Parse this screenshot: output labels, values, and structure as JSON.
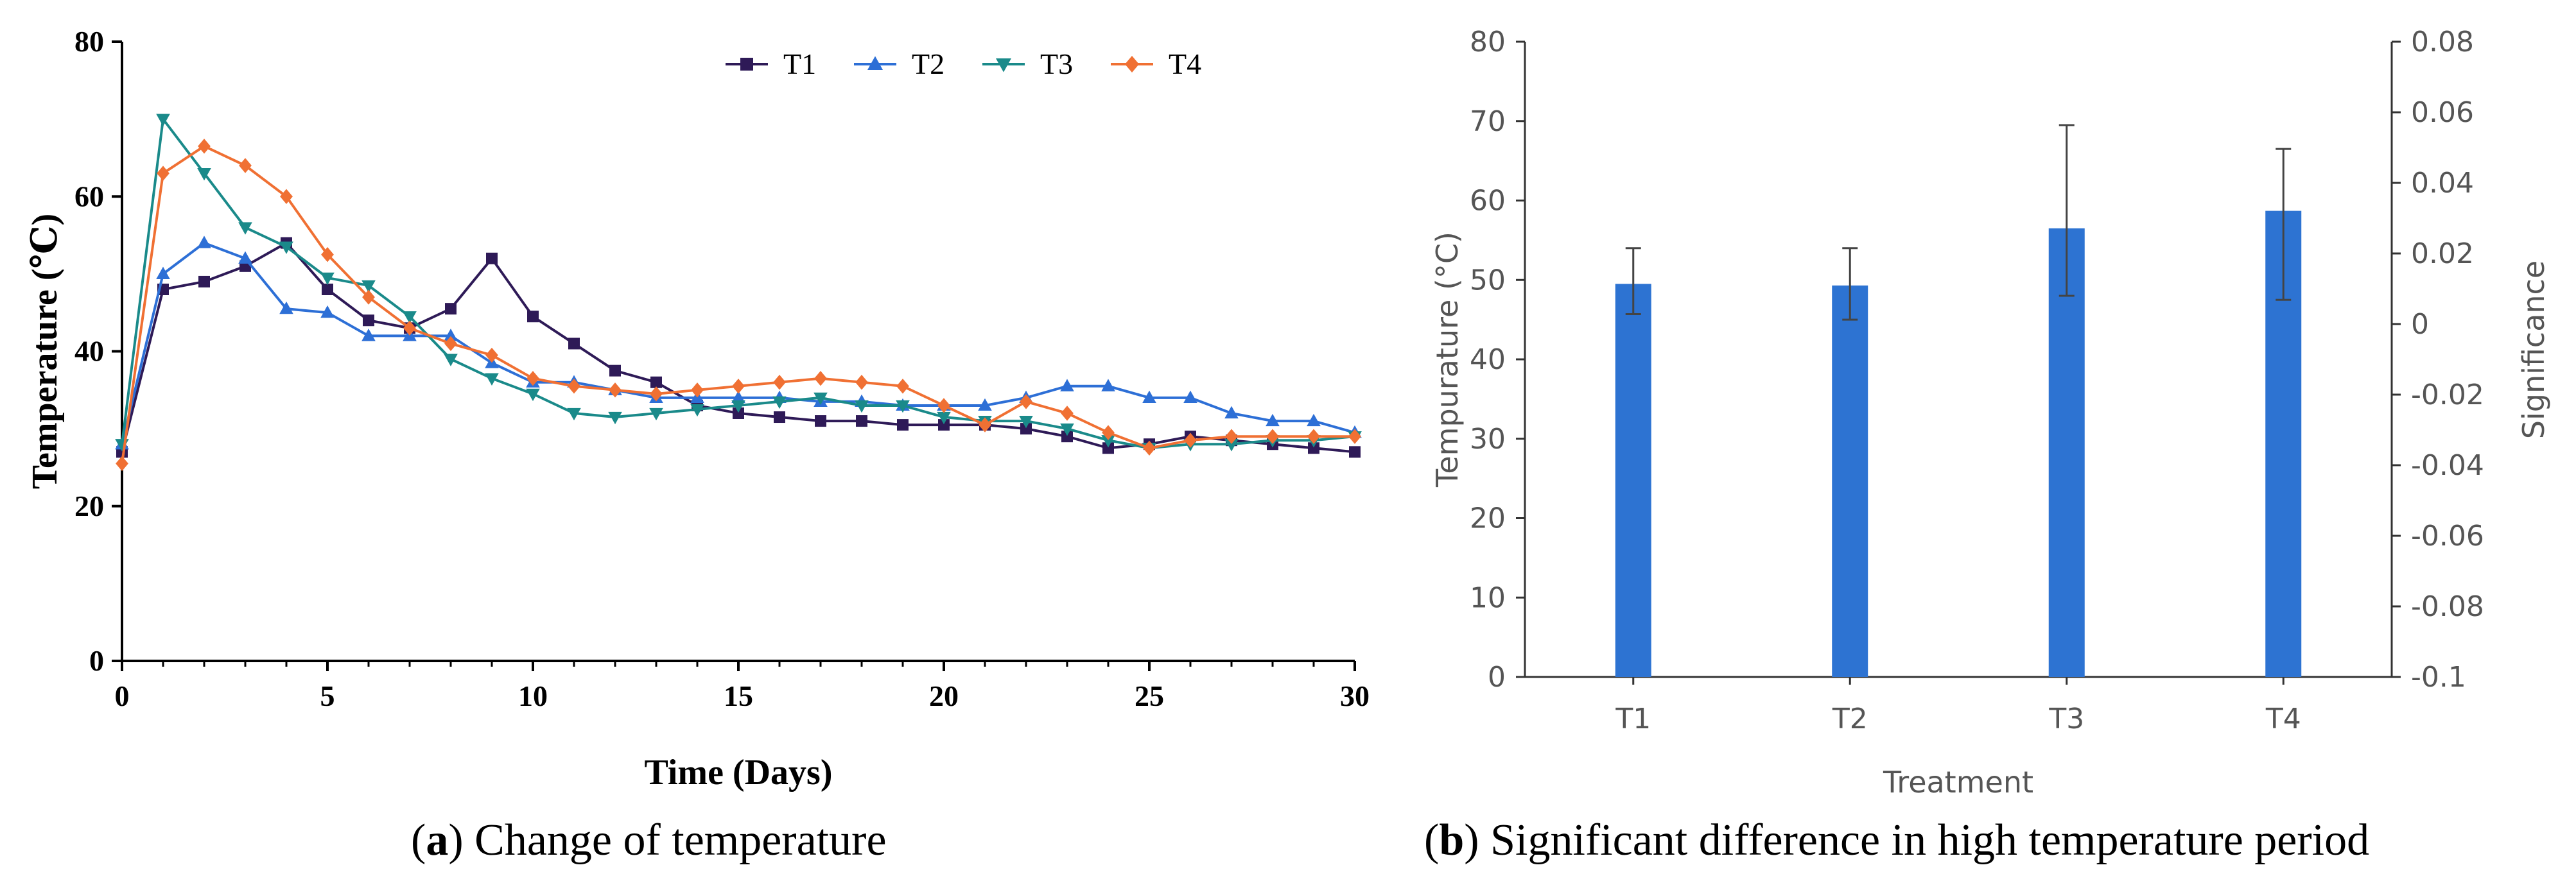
{
  "chart_data": [
    {
      "type": "line",
      "panel": "a",
      "xlabel": "Time (Days)",
      "ylabel": "Temperature (℃)",
      "xlim": [
        0,
        30
      ],
      "ylim": [
        0,
        80
      ],
      "xticks": [
        0,
        5,
        10,
        15,
        20,
        25,
        30
      ],
      "yticks": [
        0,
        20,
        40,
        60,
        80
      ],
      "grid": false,
      "legend_position": "top",
      "x": [
        0,
        1,
        2,
        3,
        4,
        5,
        6,
        7,
        8,
        9,
        10,
        11,
        12,
        13,
        14,
        15,
        16,
        17,
        18,
        19,
        20,
        21,
        22,
        23,
        24,
        25,
        26,
        27,
        28,
        29,
        30
      ],
      "series": [
        {
          "name": "T1",
          "color": "#2e1a57",
          "marker": "square",
          "values": [
            27,
            48,
            49,
            51,
            54,
            48,
            44,
            43,
            45.5,
            52,
            44.5,
            41,
            37.5,
            36,
            33,
            32,
            31.5,
            31,
            31,
            30.5,
            30.5,
            30.5,
            30,
            29,
            27.5,
            28,
            29,
            28.5,
            28,
            27.5,
            27
          ]
        },
        {
          "name": "T2",
          "color": "#2d6fd6",
          "marker": "triangle-up",
          "values": [
            28,
            50,
            54,
            52,
            45.5,
            45,
            42,
            42,
            42,
            38.5,
            36,
            36,
            35,
            34,
            34,
            34,
            34,
            33.5,
            33.5,
            33,
            33,
            33,
            34,
            35.5,
            35.5,
            34,
            34,
            32,
            31,
            31,
            29.5
          ]
        },
        {
          "name": "T3",
          "color": "#1a8a8a",
          "marker": "triangle-down",
          "values": [
            28,
            70,
            63,
            56,
            53.5,
            49.5,
            48.5,
            44.5,
            39,
            36.5,
            34.5,
            32,
            31.5,
            32,
            32.5,
            33,
            33.5,
            34,
            33,
            33,
            31.5,
            31,
            31,
            30,
            28.5,
            27.5,
            28,
            28,
            28.5,
            28.5,
            29
          ]
        },
        {
          "name": "T4",
          "color": "#f07033",
          "marker": "diamond",
          "values": [
            25.5,
            63,
            66.5,
            64,
            60,
            52.5,
            47,
            43,
            41,
            39.5,
            36.5,
            35.5,
            35,
            34.5,
            35,
            35.5,
            36,
            36.5,
            36,
            35.5,
            33,
            30.5,
            33.5,
            32,
            29.5,
            27.5,
            28.5,
            29,
            29,
            29,
            29
          ]
        }
      ]
    },
    {
      "type": "bar",
      "panel": "b",
      "categories": [
        "T1",
        "T2",
        "T3",
        "T4"
      ],
      "values": [
        49.5,
        49.3,
        56.5,
        58.7
      ],
      "error": [
        [
          45.7,
          54
        ],
        [
          45,
          54
        ],
        [
          48,
          69.5
        ],
        [
          47.5,
          66.5
        ]
      ],
      "xlabel": "Treatment",
      "ylabel": "Tempurature (°C)",
      "y2label": "Significance",
      "ylim": [
        0,
        80
      ],
      "yticks": [
        0,
        10,
        20,
        30,
        40,
        50,
        60,
        70,
        80
      ],
      "y2lim": [
        -0.1,
        0.08
      ],
      "y2ticks": [
        "-0.1",
        "-0.08",
        "-0.06",
        "-0.04",
        "-0.02",
        "0",
        "0.02",
        "0.04",
        "0.06",
        "0.08"
      ],
      "bar_color": "#2d73d2",
      "grid": false
    }
  ],
  "captions": {
    "a_letter": "a",
    "a_text": " Change of temperature",
    "b_letter": "b",
    "b_text": " Significant difference in high temperature period"
  }
}
